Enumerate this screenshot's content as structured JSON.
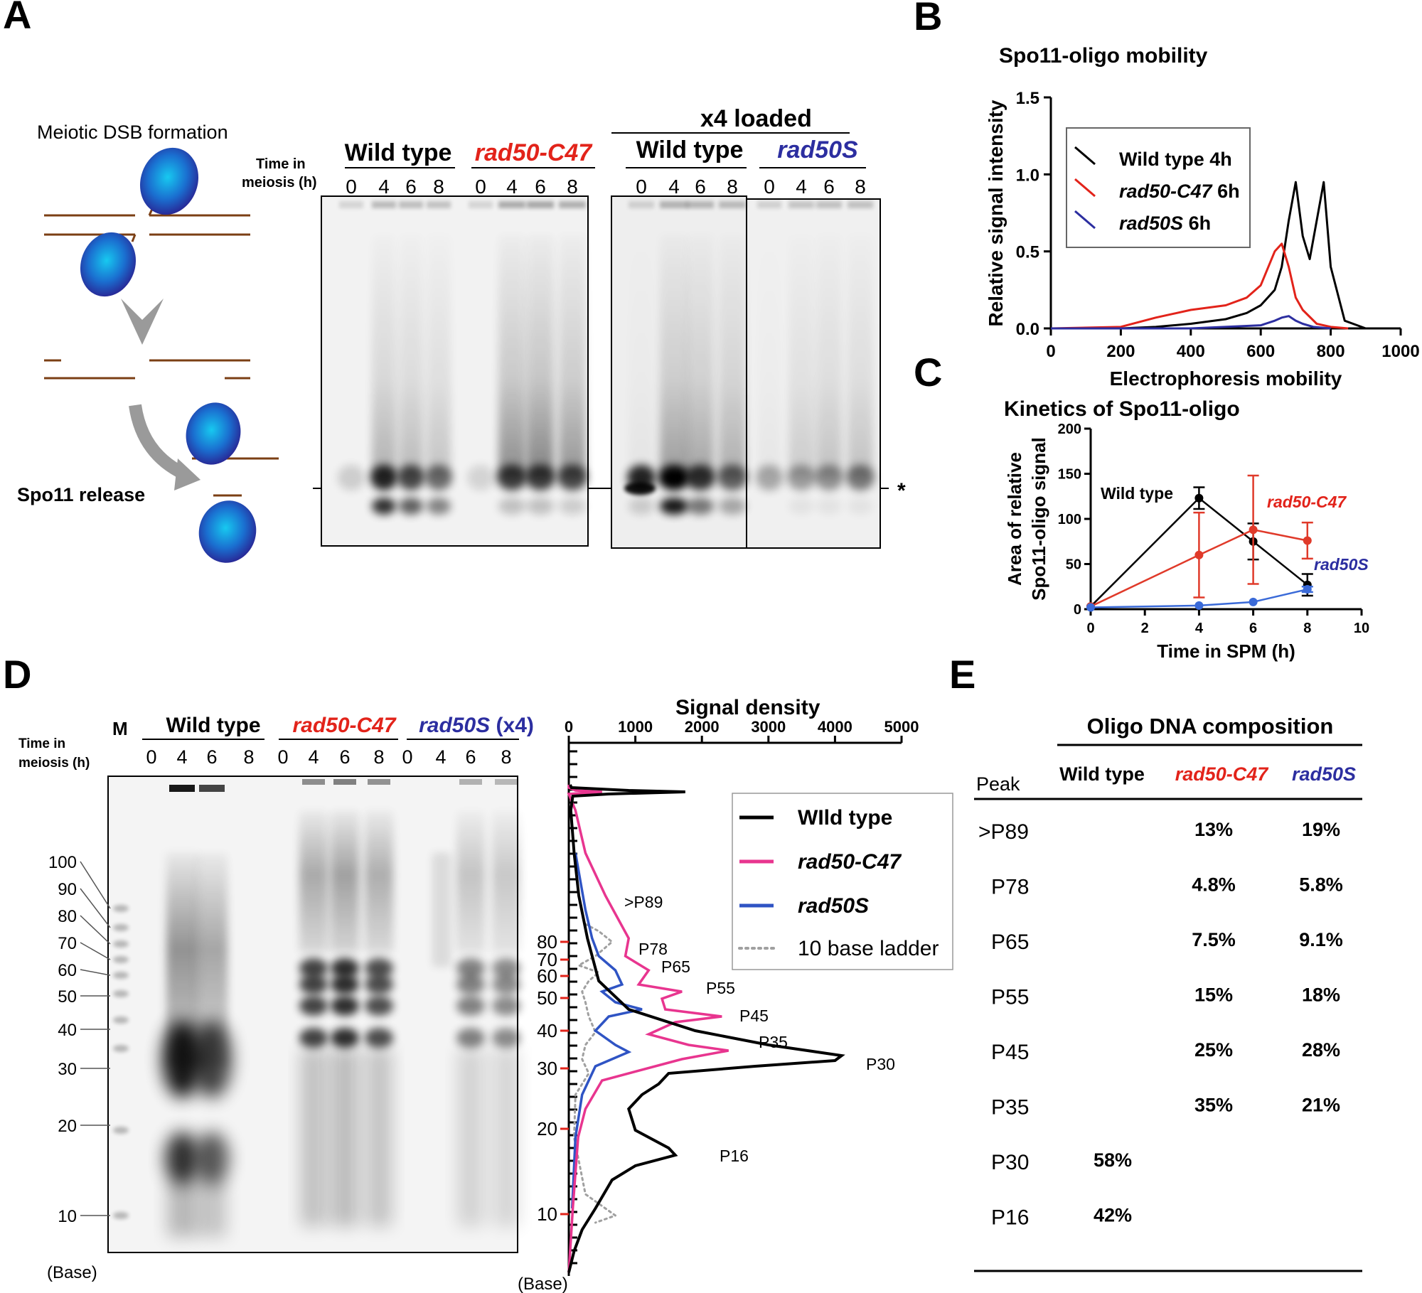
{
  "colors": {
    "wild_type": "#000000",
    "rad50_c47": "#e2231a",
    "rad50s": "#2c2ea0",
    "rad50_c47_density": "#e8358f",
    "rad50s_density": "#2f54c4",
    "ladder": "#a0a0a0",
    "strand": "#7b3f14",
    "protein": "#1e63c8"
  },
  "panels": {
    "a": "A",
    "b": "B",
    "c": "C",
    "d": "D",
    "e": "E"
  },
  "panelA": {
    "schematic_title": "Meiotic DSB formation",
    "release_label": "Spo11 release",
    "time_label_line1": "Time in",
    "time_label_line2": "meiosis (h)",
    "loaded_label": "x4 loaded",
    "groups": [
      "Wild type",
      "rad50-C47",
      "Wild type",
      "rad50S"
    ],
    "lanes": [
      "0",
      "4",
      "6",
      "8"
    ],
    "asterisk": "*"
  },
  "panelB": {
    "title": "Spo11-oligo mobility",
    "chart_data": {
      "type": "line",
      "title": "Spo11-oligo mobility",
      "xlabel": "Electrophoresis mobility",
      "ylabel": "Relative signal intensity",
      "xlim": [
        0,
        1000
      ],
      "ylim": [
        0,
        1.5
      ],
      "xticks": [
        "0",
        "200",
        "400",
        "600",
        "800",
        "1000"
      ],
      "yticks": [
        "0.0",
        "0.5",
        "1.0",
        "1.5"
      ],
      "legend_position": "top-left",
      "series": [
        {
          "name": "Wild type 4h",
          "x": [
            0,
            100,
            200,
            300,
            400,
            500,
            560,
            600,
            640,
            660,
            680,
            700,
            720,
            740,
            760,
            780,
            800,
            840,
            900,
            920
          ],
          "y": [
            0.0,
            0.0,
            0.0,
            0.01,
            0.03,
            0.06,
            0.1,
            0.15,
            0.25,
            0.4,
            0.7,
            0.95,
            0.6,
            0.45,
            0.7,
            0.95,
            0.4,
            0.05,
            0.0,
            0.0
          ]
        },
        {
          "name": "rad50-C47 6h",
          "x": [
            0,
            200,
            300,
            400,
            500,
            560,
            600,
            640,
            660,
            680,
            700,
            720,
            760,
            800,
            850
          ],
          "y": [
            0.0,
            0.01,
            0.07,
            0.12,
            0.15,
            0.2,
            0.28,
            0.5,
            0.55,
            0.4,
            0.2,
            0.12,
            0.03,
            0.01,
            0.0
          ]
        },
        {
          "name": "rad50S 6h",
          "x": [
            0,
            400,
            600,
            640,
            660,
            680,
            700,
            720,
            750,
            800
          ],
          "y": [
            0.0,
            0.0,
            0.02,
            0.05,
            0.07,
            0.08,
            0.05,
            0.03,
            0.01,
            0.0
          ]
        }
      ]
    },
    "legend": [
      {
        "label": "Wild type 4h",
        "italic": "",
        "suffix": ""
      },
      {
        "label": "",
        "italic": "rad50-C47",
        "suffix": " 6h"
      },
      {
        "label": "",
        "italic": "rad50S",
        "suffix": " 6h"
      }
    ]
  },
  "panelC": {
    "title": "Kinetics of Spo11-oligo",
    "chart_data": {
      "type": "line",
      "title": "Kinetics of Spo11-oligo",
      "xlabel": "Time in SPM (h)",
      "ylabel": "Area of relative Spo11-oligo signal",
      "xlim": [
        0,
        10
      ],
      "ylim": [
        0,
        200
      ],
      "xticks": [
        "0",
        "2",
        "4",
        "6",
        "8",
        "10"
      ],
      "yticks": [
        "0",
        "50",
        "100",
        "150",
        "200"
      ],
      "series": [
        {
          "name": "Wild type",
          "x": [
            0,
            4,
            6,
            8
          ],
          "y": [
            3,
            123,
            75,
            27
          ],
          "err": [
            1,
            12,
            20,
            12
          ]
        },
        {
          "name": "rad50-C47",
          "x": [
            0,
            4,
            6,
            8
          ],
          "y": [
            3,
            60,
            88,
            76
          ],
          "err": [
            1,
            47,
            60,
            20
          ]
        },
        {
          "name": "rad50S",
          "x": [
            0,
            4,
            6,
            8
          ],
          "y": [
            2,
            4,
            8,
            22
          ],
          "err": [
            0,
            1,
            1,
            3
          ]
        }
      ]
    },
    "ylabel_line1": "Area of relative",
    "ylabel_line2": "Spo11-oligo signal"
  },
  "panelD": {
    "marker": "M",
    "time_label_line1": "Time in",
    "time_label_line2": "meiosis (h)",
    "groups": [
      "Wild type",
      "rad50-C47",
      "rad50S",
      " (x4)"
    ],
    "lanes": [
      "0",
      "4",
      "6",
      "8"
    ],
    "base_label": "(Base)",
    "ladder_labels": [
      "100",
      "90",
      "80",
      "70",
      "60",
      "50",
      "40",
      "30",
      "20",
      "10"
    ],
    "density_title": "Signal density",
    "density_xticks": [
      "0",
      "1000",
      "2000",
      "3000",
      "4000",
      "5000"
    ],
    "density_yticks": [
      "80",
      "70",
      "60",
      "50",
      "40",
      "30",
      "20",
      "10"
    ],
    "peak_labels": [
      ">P89",
      "P78",
      "P65",
      "P55",
      "P45",
      "P35",
      "P30",
      "P16"
    ],
    "legend": [
      "WIld type",
      "rad50-C47",
      "rad50S",
      "10 base ladder"
    ]
  },
  "panelE": {
    "title": "Oligo DNA composition",
    "columns": [
      "Peak",
      "Wild type",
      "rad50-C47",
      "rad50S"
    ],
    "rows": [
      {
        "peak": ">P89",
        "wt": "",
        "c47": "13%",
        "s": "19%"
      },
      {
        "peak": "P78",
        "wt": "",
        "c47": "4.8%",
        "s": "5.8%"
      },
      {
        "peak": "P65",
        "wt": "",
        "c47": "7.5%",
        "s": "9.1%"
      },
      {
        "peak": "P55",
        "wt": "",
        "c47": "15%",
        "s": "18%"
      },
      {
        "peak": "P45",
        "wt": "",
        "c47": "25%",
        "s": "28%"
      },
      {
        "peak": "P35",
        "wt": "",
        "c47": "35%",
        "s": "21%"
      },
      {
        "peak": "P30",
        "wt": "58%",
        "c47": "",
        "s": ""
      },
      {
        "peak": "P16",
        "wt": "42%",
        "c47": "",
        "s": ""
      }
    ]
  }
}
